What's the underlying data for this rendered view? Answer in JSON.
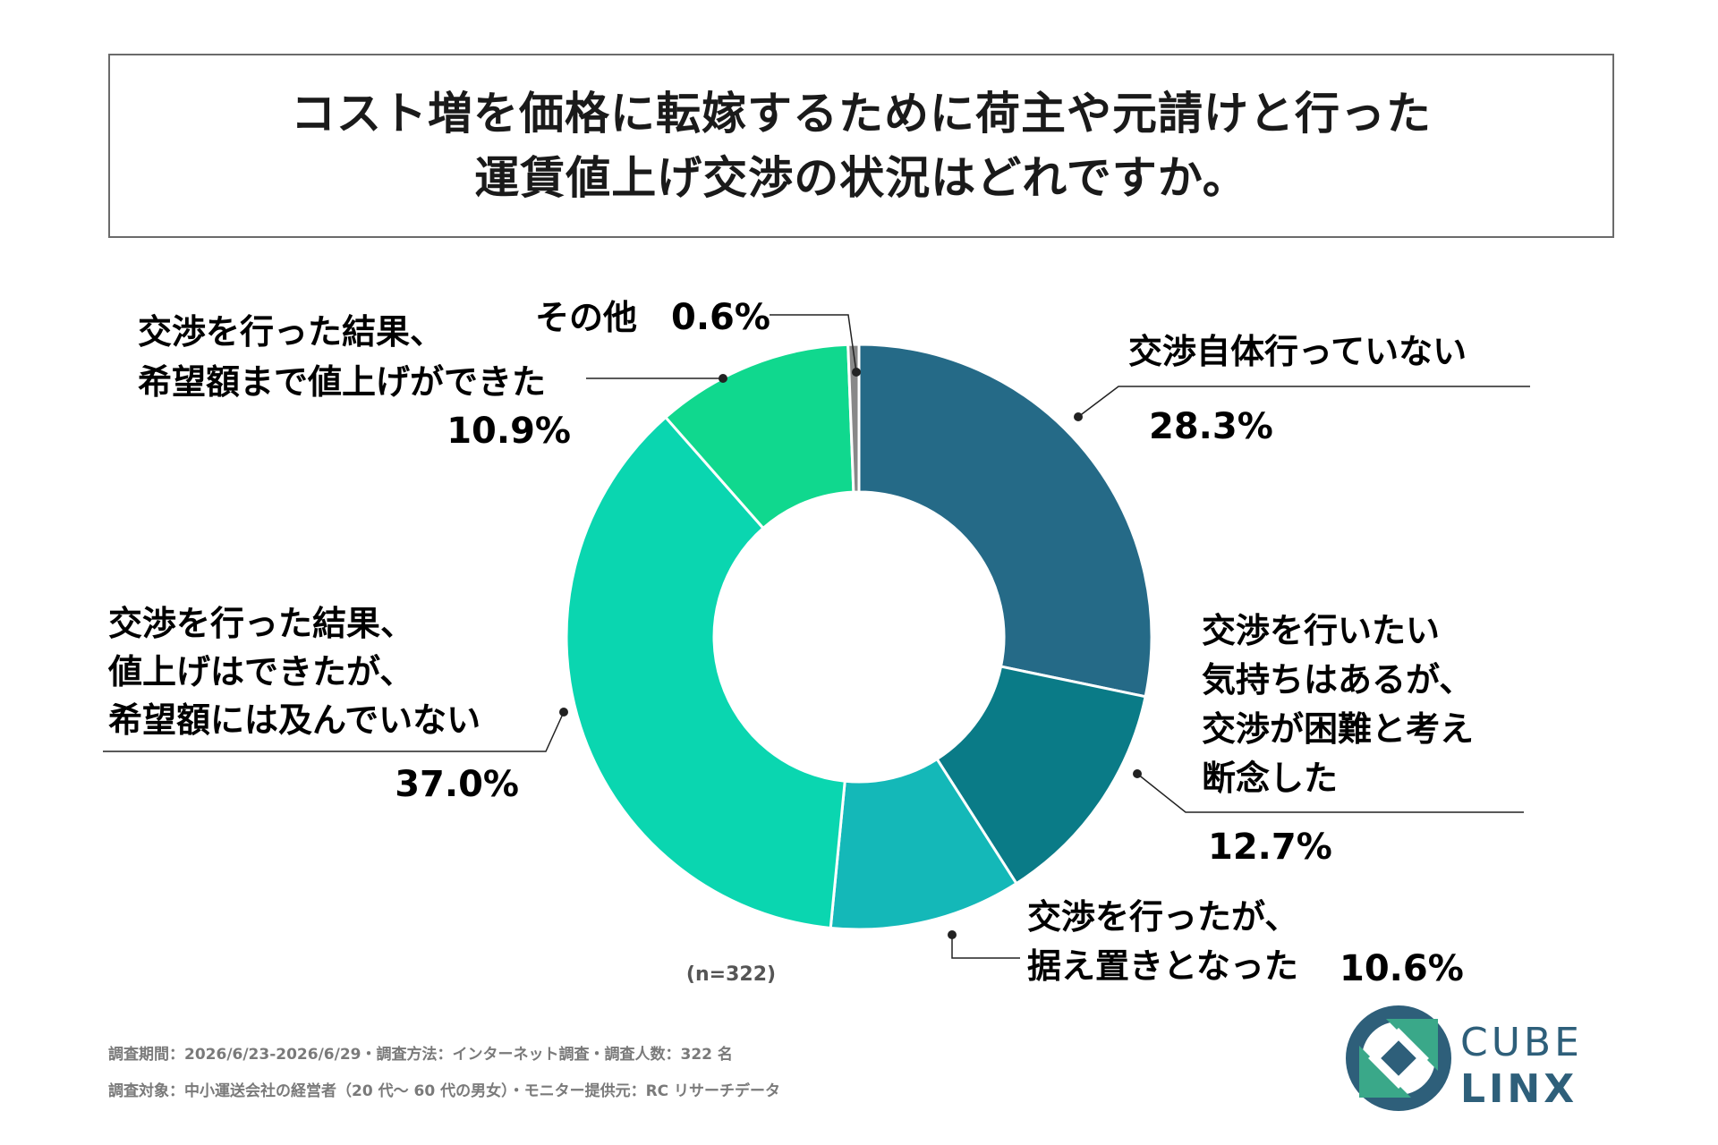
{
  "title": {
    "line1": "コスト増を価格に転嫁するために荷主や元請けと行った",
    "line2": "運賃値上げ交渉の状況はどれですか。"
  },
  "chart_data": {
    "type": "pie",
    "donut": true,
    "slices": [
      {
        "label": "交渉自体行っていない",
        "value": 28.3,
        "value_label": "28.3%",
        "color": "#256a87"
      },
      {
        "label": "交渉を行いたい気持ちはあるが、交渉が困難と考え断念した",
        "value": 12.7,
        "value_label": "12.7%",
        "color": "#0a7b87"
      },
      {
        "label": "交渉を行ったが、据え置きとなった",
        "value": 10.6,
        "value_label": "10.6%",
        "color": "#14b8b8"
      },
      {
        "label": "交渉を行った結果、値上げはできたが、希望額には及んでいない",
        "value": 37.0,
        "value_label": "37.0%",
        "color": "#0ad6b0"
      },
      {
        "label": "交渉を行った結果、希望額まで値上げができた",
        "value": 10.9,
        "value_label": "10.9%",
        "color": "#10d88e"
      },
      {
        "label": "その他",
        "value": 0.6,
        "value_label": "0.6%",
        "color": "#888888"
      }
    ],
    "sample": "(n=322)"
  },
  "labels": {
    "s0": {
      "lines": [
        "交渉自体行っていない"
      ],
      "pct": "28.3%",
      "color": "#256a87"
    },
    "s1": {
      "lines": [
        "交渉を行いたい",
        "気持ちはあるが、",
        "交渉が困難と考え",
        "断念した"
      ],
      "pct": "12.7%",
      "color": "#0a7b87"
    },
    "s2": {
      "lines": [
        "交渉を行ったが、",
        "据え置きとなった"
      ],
      "pct": "10.6%",
      "color": "#14b8b8"
    },
    "s3": {
      "lines": [
        "交渉を行った結果、",
        "値上げはできたが、",
        "希望額には及んでいない"
      ],
      "pct": "37.0%",
      "color": "#0ad6b0"
    },
    "s4": {
      "lines": [
        "交渉を行った結果、",
        "希望額まで値上げができた"
      ],
      "pct": "10.9%",
      "color": "#10d88e"
    },
    "s5": {
      "lines": [
        "その他"
      ],
      "pct": "0.6%",
      "color": "#888888"
    }
  },
  "footer": {
    "line1": "調査期間：2026/6/23-2026/6/29・調査方法：インターネット調査・調査人数：322 名",
    "line2": "調査対象：中小運送会社の経営者（20 代～ 60 代の男女）・モニター提供元：RC リサーチデータ"
  },
  "logo": {
    "top": "CUBE",
    "bottom": "LINX",
    "color": "#2e5f7a",
    "accent": "#3aa889"
  }
}
